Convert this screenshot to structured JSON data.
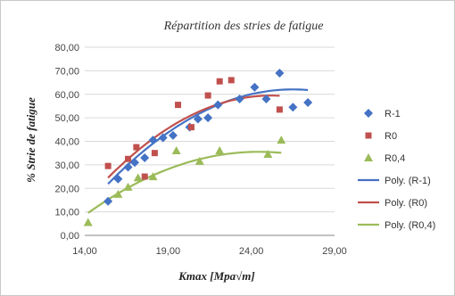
{
  "chart_data": {
    "type": "scatter",
    "title": "Répartition des stries de fatigue",
    "xlabel": "Kmax  [Mpa√m]",
    "ylabel": "% Strie de fatigue",
    "xlim": [
      14,
      29
    ],
    "ylim": [
      0,
      80
    ],
    "x_ticks": [
      "14,00",
      "19,00",
      "24,00",
      "29,00"
    ],
    "y_ticks": [
      "0,00",
      "10,00",
      "20,00",
      "30,00",
      "40,00",
      "50,00",
      "60,00",
      "70,00",
      "80,00"
    ],
    "grid": "horizontal",
    "legend_position": "right",
    "series": [
      {
        "name": "R-1",
        "marker": "diamond",
        "color": "#4472C4",
        "points": [
          [
            15.4,
            14.5
          ],
          [
            16.0,
            24.0
          ],
          [
            16.6,
            29.0
          ],
          [
            17.0,
            31.0
          ],
          [
            17.6,
            33.0
          ],
          [
            18.1,
            40.5
          ],
          [
            18.7,
            41.5
          ],
          [
            19.3,
            42.5
          ],
          [
            20.3,
            46.0
          ],
          [
            20.8,
            49.5
          ],
          [
            21.4,
            50.0
          ],
          [
            22.0,
            55.5
          ],
          [
            23.3,
            58.0
          ],
          [
            24.2,
            63.0
          ],
          [
            24.9,
            58.0
          ],
          [
            25.7,
            69.0
          ],
          [
            26.5,
            54.5
          ],
          [
            27.4,
            56.5
          ]
        ]
      },
      {
        "name": "R0",
        "marker": "square",
        "color": "#C0504D",
        "points": [
          [
            15.4,
            29.5
          ],
          [
            16.6,
            32.5
          ],
          [
            17.1,
            37.5
          ],
          [
            17.6,
            25.0
          ],
          [
            18.2,
            35.0
          ],
          [
            19.6,
            55.5
          ],
          [
            20.4,
            46.0
          ],
          [
            21.4,
            59.5
          ],
          [
            22.1,
            65.5
          ],
          [
            22.8,
            66.0
          ],
          [
            25.7,
            53.5
          ]
        ]
      },
      {
        "name": "R0,4",
        "marker": "triangle",
        "color": "#9BBB59",
        "points": [
          [
            14.2,
            5.5
          ],
          [
            16.0,
            17.5
          ],
          [
            16.6,
            20.5
          ],
          [
            17.2,
            24.5
          ],
          [
            18.1,
            25.0
          ],
          [
            19.5,
            36.0
          ],
          [
            20.9,
            31.5
          ],
          [
            22.1,
            36.0
          ],
          [
            25.0,
            34.5
          ],
          [
            25.8,
            40.5
          ]
        ]
      }
    ],
    "trendlines": [
      {
        "name": "Poly. (R-1)",
        "color": "#4472C4",
        "x_range": [
          15.4,
          27.4
        ],
        "coeffs": [
          -167.16,
          17.305,
          -0.3266
        ]
      },
      {
        "name": "Poly. (R0)",
        "color": "#C0504D",
        "x_range": [
          15.4,
          25.7
        ],
        "coeffs": [
          -171.92,
          18.37,
          -0.3646
        ]
      },
      {
        "name": "Poly. (R0,4)",
        "color": "#9BBB59",
        "x_range": [
          14.2,
          25.8
        ],
        "coeffs": [
          -112.3,
          12.088,
          -0.2471
        ]
      }
    ]
  }
}
